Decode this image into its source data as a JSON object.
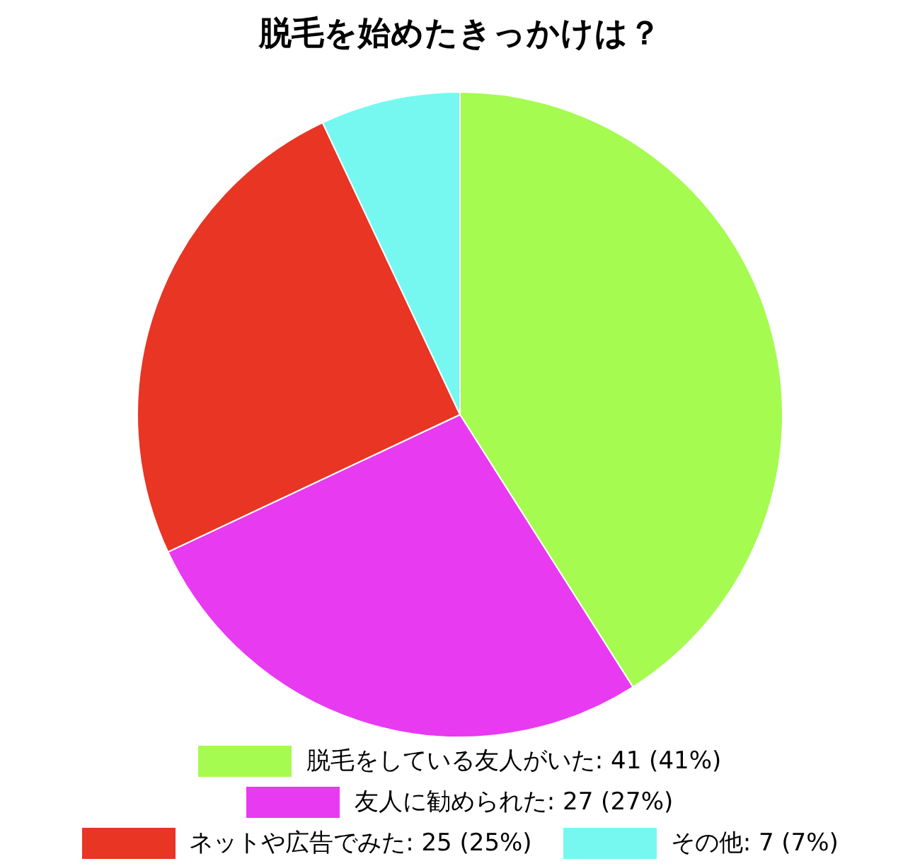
{
  "chart_data": {
    "type": "pie",
    "title": "脱毛を始めたきっかけは？",
    "categories": [
      "脱毛をしている友人がいた",
      "友人に勧められた",
      "ネットや広告でみた",
      "その他"
    ],
    "values": [
      41,
      27,
      25,
      7
    ],
    "value_labels": [
      "41 (41%)",
      "27 (27%)",
      "25 (25%)",
      "7 (7%)"
    ],
    "colors": [
      "#a5fb50",
      "#e83af0",
      "#e83524",
      "#76f8f1"
    ],
    "legend": "bottom"
  }
}
